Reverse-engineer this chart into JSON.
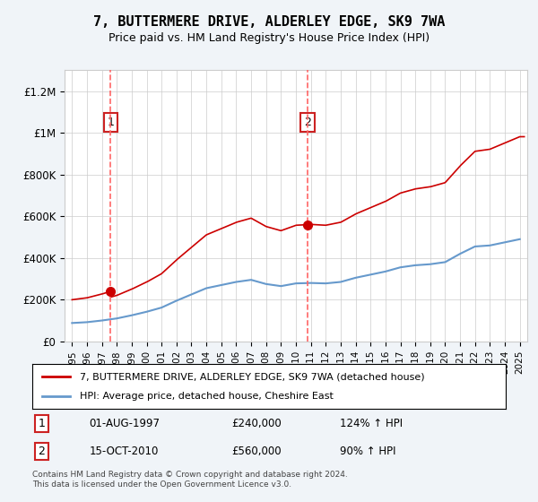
{
  "title": "7, BUTTERMERE DRIVE, ALDERLEY EDGE, SK9 7WA",
  "subtitle": "Price paid vs. HM Land Registry's House Price Index (HPI)",
  "legend_line1": "7, BUTTERMERE DRIVE, ALDERLEY EDGE, SK9 7WA (detached house)",
  "legend_line2": "HPI: Average price, detached house, Cheshire East",
  "footnote": "Contains HM Land Registry data © Crown copyright and database right 2024.\nThis data is licensed under the Open Government Licence v3.0.",
  "transaction1": {
    "label": "1",
    "date": "01-AUG-1997",
    "price": "£240,000",
    "hpi": "124% ↑ HPI"
  },
  "transaction2": {
    "label": "2",
    "date": "15-OCT-2010",
    "price": "£560,000",
    "hpi": "90% ↑ HPI"
  },
  "vline1_x": 1997.58,
  "vline2_x": 2010.79,
  "dot1_x": 1997.58,
  "dot1_y": 240000,
  "dot2_x": 2010.79,
  "dot2_y": 560000,
  "ylim": [
    0,
    1300000
  ],
  "xlim": [
    1994.5,
    2025.5
  ],
  "background_color": "#f0f4f8",
  "plot_bg_color": "#ffffff",
  "red_line_color": "#cc0000",
  "blue_line_color": "#6699cc",
  "vline_color": "#ff6666",
  "grid_color": "#cccccc",
  "box_color": "#cc2222"
}
